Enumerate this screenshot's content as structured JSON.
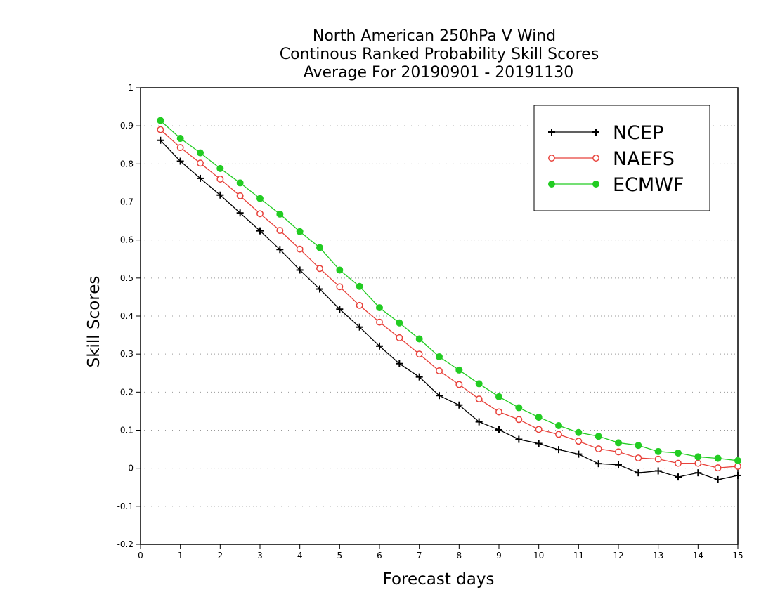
{
  "chart_data": {
    "type": "line",
    "title_lines": [
      "North American 250hPa V Wind",
      "Continous Ranked Probability Skill Scores",
      "Average For 20190901 - 20191130"
    ],
    "xlabel": "Forecast days",
    "ylabel": "Skill Scores",
    "xlim": [
      0,
      15
    ],
    "ylim": [
      -0.2,
      1
    ],
    "xticks": [
      "0",
      "1",
      "2",
      "3",
      "4",
      "5",
      "6",
      "7",
      "8",
      "9",
      "10",
      "11",
      "12",
      "13",
      "14",
      "15"
    ],
    "yticks": [
      "-0.2",
      "-0.1",
      "0",
      "0.1",
      "0.2",
      "0.3",
      "0.4",
      "0.5",
      "0.6",
      "0.7",
      "0.8",
      "0.9",
      "1"
    ],
    "grid": "horizontal dotted",
    "legend_position": "top-right",
    "x": [
      0.5,
      1,
      1.5,
      2,
      2.5,
      3,
      3.5,
      4,
      4.5,
      5,
      5.5,
      6,
      6.5,
      7,
      7.5,
      8,
      8.5,
      9,
      9.5,
      10,
      10.5,
      11,
      11.5,
      12,
      12.5,
      13,
      13.5,
      14,
      14.5,
      15
    ],
    "series": [
      {
        "name": "NCEP",
        "color": "#000000",
        "marker": "plus",
        "values": [
          0.862,
          0.807,
          0.762,
          0.718,
          0.671,
          0.624,
          0.575,
          0.521,
          0.471,
          0.418,
          0.371,
          0.321,
          0.275,
          0.24,
          0.191,
          0.166,
          0.122,
          0.101,
          0.076,
          0.065,
          0.049,
          0.037,
          0.012,
          0.009,
          -0.012,
          -0.007,
          -0.023,
          -0.012,
          -0.03,
          -0.019
        ]
      },
      {
        "name": "NAEFS",
        "color": "#e8413a",
        "marker": "open-circle",
        "values": [
          0.89,
          0.843,
          0.802,
          0.76,
          0.716,
          0.669,
          0.625,
          0.576,
          0.525,
          0.477,
          0.428,
          0.384,
          0.343,
          0.3,
          0.256,
          0.22,
          0.182,
          0.148,
          0.128,
          0.102,
          0.089,
          0.071,
          0.051,
          0.043,
          0.027,
          0.024,
          0.013,
          0.013,
          0.001,
          0.005
        ]
      },
      {
        "name": "ECMWF",
        "color": "#22cc22",
        "marker": "filled-circle",
        "values": [
          0.914,
          0.867,
          0.829,
          0.788,
          0.75,
          0.709,
          0.668,
          0.622,
          0.58,
          0.521,
          0.478,
          0.422,
          0.382,
          0.34,
          0.293,
          0.258,
          0.222,
          0.188,
          0.159,
          0.134,
          0.112,
          0.094,
          0.084,
          0.067,
          0.06,
          0.044,
          0.04,
          0.03,
          0.026,
          0.02
        ]
      }
    ]
  }
}
